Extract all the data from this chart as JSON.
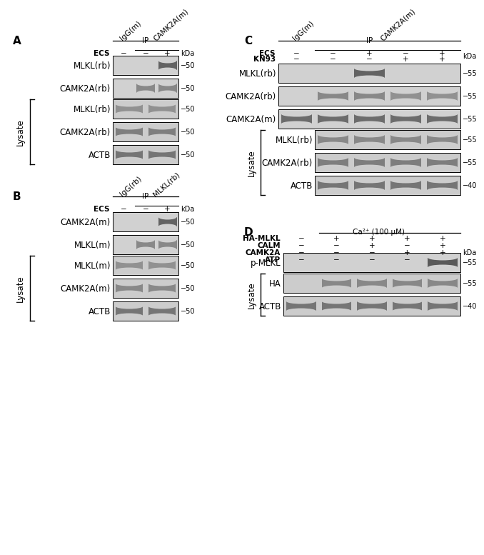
{
  "bg_color": "#ffffff",
  "panel_A": {
    "label": "A",
    "ip_header": "IP",
    "col1_header": "IgG(m)",
    "col2_header": "CAMK2A(m)",
    "ecs_vals": [
      "−",
      "−",
      "+"
    ],
    "kda_label": "kDa",
    "ip_rows": [
      {
        "label": "MLKL(rb)",
        "kda": "−50",
        "bands": [
          0,
          0,
          0.85
        ],
        "n": 3
      },
      {
        "label": "CAMK2A(rb)",
        "kda": "−50",
        "bands": [
          0,
          0.65,
          0.65
        ],
        "n": 3
      }
    ],
    "lysate_rows": [
      {
        "label": "MLKL(rb)",
        "kda": "−50",
        "bands": [
          0.6,
          0.6
        ],
        "n": 2
      },
      {
        "label": "CAMK2A(rb)",
        "kda": "−50",
        "bands": [
          0.7,
          0.7
        ],
        "n": 2
      },
      {
        "label": "ACTB",
        "kda": "−50",
        "bands": [
          0.75,
          0.75
        ],
        "n": 2
      }
    ]
  },
  "panel_B": {
    "label": "B",
    "ip_header": "IP",
    "col1_header": "IgG(rb)",
    "col2_header": "MLKL(rb)",
    "ecs_vals": [
      "−",
      "−",
      "+"
    ],
    "kda_label": "kDa",
    "ip_rows": [
      {
        "label": "CAMK2A(m)",
        "kda": "−50",
        "bands": [
          0,
          0,
          0.85
        ],
        "n": 3
      },
      {
        "label": "MLKL(m)",
        "kda": "−50",
        "bands": [
          0,
          0.65,
          0.65
        ],
        "n": 3
      }
    ],
    "lysate_rows": [
      {
        "label": "MLKL(m)",
        "kda": "−50",
        "bands": [
          0.6,
          0.6
        ],
        "n": 2
      },
      {
        "label": "CAMK2A(m)",
        "kda": "−50",
        "bands": [
          0.65,
          0.65
        ],
        "n": 2
      },
      {
        "label": "ACTB",
        "kda": "−50",
        "bands": [
          0.75,
          0.75
        ],
        "n": 2
      }
    ]
  },
  "panel_C": {
    "label": "C",
    "ip_header": "IP",
    "col1_header": "IgG(m)",
    "col2_header": "CAMK2A(m)",
    "ecs_vals": [
      "−",
      "−",
      "+",
      "−",
      "+"
    ],
    "kn93_vals": [
      "−",
      "−",
      "−",
      "+",
      "+"
    ],
    "kda_label": "kDa",
    "ip_rows": [
      {
        "label": "MLKL(rb)",
        "kda": "−55",
        "bands": [
          0,
          0,
          0.85,
          0,
          0
        ],
        "n": 5
      },
      {
        "label": "CAMK2A(rb)",
        "kda": "−55",
        "bands": [
          0,
          0.65,
          0.65,
          0.6,
          0.6
        ],
        "n": 5
      },
      {
        "label": "CAMK2A(m)",
        "kda": "−55",
        "bands": [
          0.8,
          0.8,
          0.8,
          0.8,
          0.8
        ],
        "n": 5
      }
    ],
    "lysate_rows": [
      {
        "label": "MLKL(rb)",
        "kda": "−55",
        "bands": [
          0.65,
          0.65,
          0.65,
          0.65
        ],
        "n": 4
      },
      {
        "label": "CAMK2A(rb)",
        "kda": "−55",
        "bands": [
          0.7,
          0.7,
          0.7,
          0.7
        ],
        "n": 4
      },
      {
        "label": "ACTB",
        "kda": "−40",
        "bands": [
          0.75,
          0.75,
          0.75,
          0.75
        ],
        "n": 4
      }
    ]
  },
  "panel_D": {
    "label": "D",
    "ca_header": "Ca²⁺ (100 μM)",
    "condition_rows": [
      {
        "label": "HA-MLKL",
        "vals": [
          "−",
          "+",
          "+",
          "+",
          "+"
        ]
      },
      {
        "label": "CALM",
        "vals": [
          "−",
          "−",
          "+",
          "−",
          "+"
        ]
      },
      {
        "label": "CAMK2A",
        "vals": [
          "−",
          "−",
          "−",
          "+",
          "+"
        ]
      },
      {
        "label": "ATP",
        "vals": [
          "−",
          "−",
          "−",
          "−",
          "+"
        ]
      }
    ],
    "kda_label": "kDa",
    "ip_rows": [
      {
        "label": "p-MLKL",
        "kda": "−55",
        "bands": [
          0,
          0,
          0,
          0,
          0.9
        ],
        "n": 5
      }
    ],
    "lysate_rows": [
      {
        "label": "HA",
        "kda": "−55",
        "bands": [
          0,
          0.65,
          0.65,
          0.65,
          0.65
        ],
        "n": 5
      },
      {
        "label": "ACTB",
        "kda": "−40",
        "bands": [
          0.75,
          0.75,
          0.75,
          0.75,
          0.75
        ],
        "n": 5
      }
    ]
  }
}
